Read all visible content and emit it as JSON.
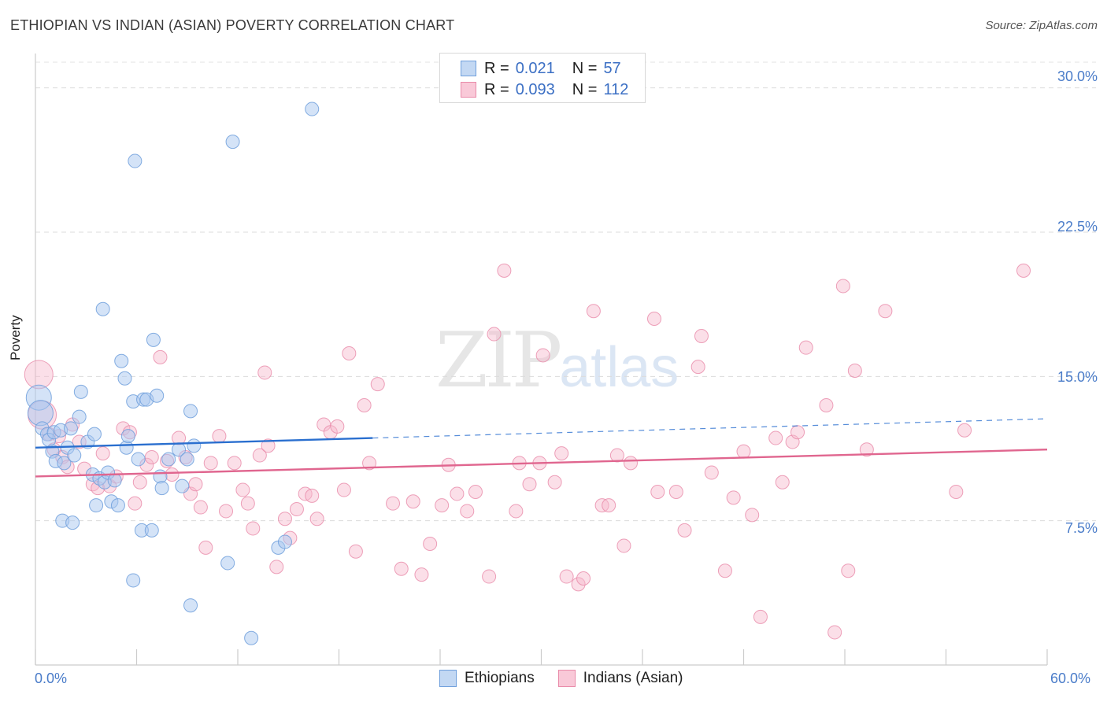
{
  "header": {
    "title": "ETHIOPIAN VS INDIAN (ASIAN) POVERTY CORRELATION CHART",
    "source": "Source: ZipAtlas.com"
  },
  "legend": {
    "ethiopians": {
      "r_label": "R =",
      "r_value": "0.021",
      "n_label": "N =",
      "n_value": "57"
    },
    "indians": {
      "r_label": "R =",
      "r_value": "0.093",
      "n_label": "N =",
      "n_value": "112"
    },
    "bottom": {
      "ethiopians": "Ethiopians",
      "indians": "Indians (Asian)"
    }
  },
  "watermark": {
    "zip": "ZIP",
    "atlas": "atlas"
  },
  "colors": {
    "blue_fill": "#aac8ef",
    "blue_stroke": "#6f9fdc",
    "blue_line": "#2a6fcf",
    "pink_fill": "#f6b8cc",
    "pink_stroke": "#e98aa9",
    "pink_line": "#e0668f",
    "tick_text": "#4a7cc9"
  },
  "chart_data": {
    "type": "scatter",
    "title": "ETHIOPIAN VS INDIAN (ASIAN) POVERTY CORRELATION CHART",
    "xlabel": "",
    "ylabel": "Poverty",
    "xlim": [
      0,
      60
    ],
    "ylim": [
      0,
      31.5
    ],
    "x_ticks": [
      "0.0%",
      "60.0%"
    ],
    "y_ticks": [
      "7.5%",
      "15.0%",
      "22.5%",
      "30.0%"
    ],
    "y_tick_values": [
      7.5,
      15.0,
      22.5,
      30.0
    ],
    "grid": true,
    "series": [
      {
        "name": "Ethiopians",
        "r": 0.021,
        "n": 57,
        "trend": {
          "x0": 0,
          "y0": 11.3,
          "x1": 20,
          "y1": 11.8,
          "dash_x1": 60,
          "dash_y1": 12.8
        },
        "points": [
          [
            0.2,
            13.9
          ],
          [
            0.3,
            13.1
          ],
          [
            0.4,
            12.3
          ],
          [
            0.7,
            12.0
          ],
          [
            0.8,
            11.7
          ],
          [
            1.0,
            11.1
          ],
          [
            1.1,
            12.1
          ],
          [
            1.2,
            10.6
          ],
          [
            1.5,
            12.2
          ],
          [
            1.7,
            10.5
          ],
          [
            1.9,
            11.3
          ],
          [
            2.1,
            12.3
          ],
          [
            2.3,
            10.9
          ],
          [
            2.6,
            12.9
          ],
          [
            2.7,
            14.2
          ],
          [
            3.1,
            11.6
          ],
          [
            3.4,
            9.9
          ],
          [
            3.5,
            12.0
          ],
          [
            3.6,
            8.3
          ],
          [
            3.8,
            9.7
          ],
          [
            4.0,
            18.5
          ],
          [
            4.1,
            9.5
          ],
          [
            4.3,
            10.0
          ],
          [
            4.5,
            8.5
          ],
          [
            4.7,
            9.6
          ],
          [
            4.9,
            8.3
          ],
          [
            5.1,
            15.8
          ],
          [
            5.3,
            14.9
          ],
          [
            5.4,
            11.3
          ],
          [
            5.5,
            11.9
          ],
          [
            5.8,
            13.7
          ],
          [
            5.9,
            26.2
          ],
          [
            6.1,
            10.7
          ],
          [
            6.3,
            7.0
          ],
          [
            6.4,
            13.8
          ],
          [
            6.6,
            13.8
          ],
          [
            6.9,
            7.0
          ],
          [
            7.0,
            16.9
          ],
          [
            7.2,
            14.0
          ],
          [
            7.4,
            9.8
          ],
          [
            7.5,
            9.2
          ],
          [
            7.9,
            10.7
          ],
          [
            8.5,
            11.2
          ],
          [
            8.7,
            9.3
          ],
          [
            9.0,
            10.7
          ],
          [
            9.2,
            13.2
          ],
          [
            9.4,
            11.4
          ],
          [
            11.4,
            5.3
          ],
          [
            11.7,
            27.2
          ],
          [
            14.4,
            6.1
          ],
          [
            14.8,
            6.4
          ],
          [
            1.6,
            7.5
          ],
          [
            2.2,
            7.4
          ],
          [
            5.8,
            4.4
          ],
          [
            9.2,
            3.1
          ],
          [
            12.8,
            1.4
          ],
          [
            16.4,
            28.9
          ]
        ]
      },
      {
        "name": "Indians (Asian)",
        "r": 0.093,
        "n": 112,
        "trend": {
          "x0": 0,
          "y0": 9.8,
          "x1": 60,
          "y1": 11.2
        },
        "points": [
          [
            0.2,
            15.1
          ],
          [
            0.4,
            13.0
          ],
          [
            0.8,
            12.0
          ],
          [
            1.1,
            11.2
          ],
          [
            1.4,
            11.9
          ],
          [
            1.6,
            10.8
          ],
          [
            1.9,
            10.3
          ],
          [
            2.2,
            12.5
          ],
          [
            2.6,
            11.6
          ],
          [
            2.9,
            10.2
          ],
          [
            3.4,
            9.4
          ],
          [
            3.7,
            9.2
          ],
          [
            4.0,
            11.0
          ],
          [
            4.4,
            9.3
          ],
          [
            4.8,
            9.8
          ],
          [
            5.2,
            12.3
          ],
          [
            5.6,
            12.1
          ],
          [
            5.9,
            8.4
          ],
          [
            6.2,
            9.5
          ],
          [
            6.6,
            10.4
          ],
          [
            6.9,
            10.8
          ],
          [
            7.4,
            16.0
          ],
          [
            7.8,
            10.6
          ],
          [
            8.1,
            9.9
          ],
          [
            8.5,
            11.8
          ],
          [
            8.9,
            10.8
          ],
          [
            9.2,
            8.9
          ],
          [
            9.5,
            9.4
          ],
          [
            9.8,
            8.2
          ],
          [
            10.1,
            6.1
          ],
          [
            10.4,
            10.5
          ],
          [
            10.9,
            11.9
          ],
          [
            11.3,
            8.0
          ],
          [
            11.8,
            10.5
          ],
          [
            12.3,
            9.1
          ],
          [
            12.6,
            8.4
          ],
          [
            12.9,
            7.1
          ],
          [
            13.3,
            10.9
          ],
          [
            13.6,
            15.2
          ],
          [
            13.8,
            11.4
          ],
          [
            14.3,
            5.1
          ],
          [
            14.8,
            7.6
          ],
          [
            15.1,
            6.6
          ],
          [
            15.5,
            8.1
          ],
          [
            16.0,
            8.9
          ],
          [
            16.4,
            8.8
          ],
          [
            16.7,
            7.6
          ],
          [
            17.1,
            12.5
          ],
          [
            17.5,
            12.1
          ],
          [
            17.9,
            12.4
          ],
          [
            18.3,
            9.1
          ],
          [
            18.6,
            16.2
          ],
          [
            19.0,
            5.9
          ],
          [
            19.5,
            13.5
          ],
          [
            19.8,
            10.5
          ],
          [
            20.3,
            14.6
          ],
          [
            21.2,
            8.4
          ],
          [
            21.7,
            5.0
          ],
          [
            22.4,
            8.5
          ],
          [
            22.9,
            4.7
          ],
          [
            23.4,
            6.3
          ],
          [
            24.1,
            8.3
          ],
          [
            24.5,
            10.4
          ],
          [
            25.0,
            8.9
          ],
          [
            25.6,
            8.0
          ],
          [
            26.1,
            9.0
          ],
          [
            26.9,
            4.6
          ],
          [
            27.2,
            17.2
          ],
          [
            27.8,
            20.5
          ],
          [
            28.5,
            8.0
          ],
          [
            28.7,
            10.5
          ],
          [
            29.3,
            9.4
          ],
          [
            29.9,
            10.5
          ],
          [
            30.1,
            16.1
          ],
          [
            30.8,
            9.5
          ],
          [
            31.2,
            11.0
          ],
          [
            31.5,
            4.6
          ],
          [
            32.2,
            4.2
          ],
          [
            32.5,
            4.5
          ],
          [
            33.1,
            18.4
          ],
          [
            33.6,
            8.3
          ],
          [
            34.0,
            8.3
          ],
          [
            34.5,
            10.9
          ],
          [
            34.9,
            6.2
          ],
          [
            35.3,
            10.5
          ],
          [
            36.7,
            18.0
          ],
          [
            36.9,
            9.0
          ],
          [
            38.0,
            9.0
          ],
          [
            38.5,
            7.0
          ],
          [
            39.3,
            15.5
          ],
          [
            39.5,
            17.1
          ],
          [
            40.1,
            10.0
          ],
          [
            40.9,
            4.9
          ],
          [
            41.4,
            8.7
          ],
          [
            42.0,
            11.1
          ],
          [
            42.5,
            7.8
          ],
          [
            43.0,
            2.5
          ],
          [
            43.9,
            11.8
          ],
          [
            44.3,
            9.5
          ],
          [
            44.9,
            11.6
          ],
          [
            45.2,
            12.1
          ],
          [
            45.7,
            16.5
          ],
          [
            46.9,
            13.5
          ],
          [
            47.4,
            1.7
          ],
          [
            47.9,
            19.7
          ],
          [
            48.2,
            4.9
          ],
          [
            48.6,
            15.3
          ],
          [
            49.3,
            11.2
          ],
          [
            50.4,
            18.4
          ],
          [
            54.6,
            9.0
          ],
          [
            55.1,
            12.2
          ],
          [
            58.6,
            20.5
          ]
        ]
      }
    ]
  }
}
